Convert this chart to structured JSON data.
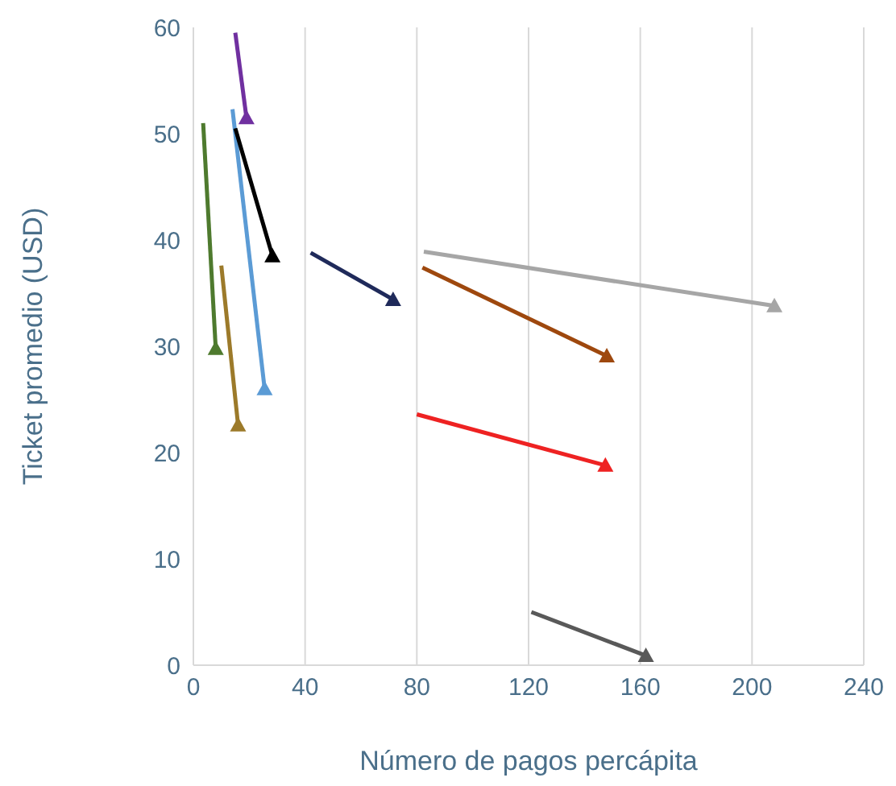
{
  "chart_data": {
    "type": "line",
    "xlabel": "Número de pagos percápita",
    "ylabel": "Ticket promedio (USD)",
    "xlim": [
      0,
      240
    ],
    "xticks": [
      0,
      40,
      80,
      120,
      160,
      200,
      240
    ],
    "ylim": [
      0,
      60
    ],
    "yticks": [
      0,
      10,
      20,
      30,
      40,
      50,
      60
    ],
    "grid": "x",
    "marker": "triangle",
    "line_style": "solid",
    "series": [
      {
        "color": "#7030a0",
        "x": [
          15,
          19
        ],
        "values": [
          59.5,
          51.5
        ]
      },
      {
        "color": "#4e7a2e",
        "x": [
          3.5,
          8
        ],
        "values": [
          51,
          29.8
        ]
      },
      {
        "color": "#5b9bd5",
        "x": [
          14,
          25.5
        ],
        "values": [
          52.3,
          26
        ]
      },
      {
        "color": "#000000",
        "x": [
          15,
          28.3
        ],
        "values": [
          50.5,
          38.5
        ]
      },
      {
        "color": "#9c7a2a",
        "x": [
          10,
          16
        ],
        "values": [
          37.6,
          22.6
        ]
      },
      {
        "color": "#1f2a5a",
        "x": [
          42,
          71.5
        ],
        "values": [
          38.8,
          34.4
        ]
      },
      {
        "color": "#a6a6a6",
        "x": [
          82.5,
          208
        ],
        "values": [
          38.9,
          33.8
        ]
      },
      {
        "color": "#9e480e",
        "x": [
          82,
          148
        ],
        "values": [
          37.4,
          29.1
        ]
      },
      {
        "color": "#ee2222",
        "x": [
          80,
          147.5
        ],
        "values": [
          23.6,
          18.8
        ]
      },
      {
        "color": "#595959",
        "x": [
          121,
          162
        ],
        "values": [
          5,
          0.9
        ]
      }
    ]
  }
}
